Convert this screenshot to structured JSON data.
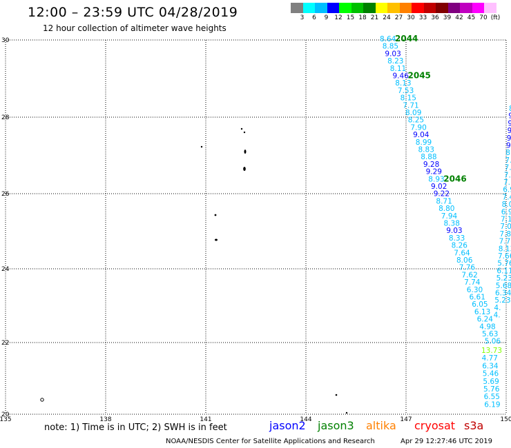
{
  "header": {
    "title": "12:00 – 23:59 UTC 04/28/2019",
    "subtitle": "12 hour collection of altimeter wave heights"
  },
  "color_scale": {
    "labels": [
      "3",
      "6",
      "9",
      "12",
      "15",
      "18",
      "21",
      "24",
      "27",
      "30",
      "33",
      "36",
      "39",
      "42",
      "45",
      "70",
      "(ft)"
    ],
    "colors": [
      "#808080",
      "#00ffff",
      "#00bfff",
      "#0000ff",
      "#00ff00",
      "#00c000",
      "#008000",
      "#ffff00",
      "#ffc000",
      "#ff8000",
      "#ff0000",
      "#c00000",
      "#800000",
      "#800080",
      "#c000c0",
      "#ff00ff",
      "#ffc0ff"
    ]
  },
  "map": {
    "lat_labels": [
      "30",
      "28",
      "26",
      "24",
      "22",
      "20"
    ],
    "lon_labels": [
      "135",
      "138",
      "141",
      "144",
      "147",
      "150"
    ],
    "passes": [
      {
        "id": "pass-left",
        "labels": [
          {
            "text": "2044",
            "row": 0,
            "color": "#008000"
          },
          {
            "text": "2045",
            "row": 5,
            "color": "#008000"
          },
          {
            "text": "2046",
            "row": 19,
            "color": "#008000"
          }
        ],
        "values": [
          {
            "v": "8.64",
            "c": "#00bfff"
          },
          {
            "v": "8.85",
            "c": "#00bfff"
          },
          {
            "v": "9.03",
            "c": "#0000ff"
          },
          {
            "v": "8.23",
            "c": "#00bfff"
          },
          {
            "v": "8.11",
            "c": "#00bfff"
          },
          {
            "v": "9.46",
            "c": "#0000ff"
          },
          {
            "v": "8.13",
            "c": "#00bfff"
          },
          {
            "v": "7.53",
            "c": "#00bfff"
          },
          {
            "v": "8.15",
            "c": "#00bfff"
          },
          {
            "v": "7.71",
            "c": "#00bfff"
          },
          {
            "v": "8.09",
            "c": "#00bfff"
          },
          {
            "v": "8.25",
            "c": "#00bfff"
          },
          {
            "v": "7.90",
            "c": "#00bfff"
          },
          {
            "v": "9.04",
            "c": "#0000ff"
          },
          {
            "v": "8.99",
            "c": "#00bfff"
          },
          {
            "v": "8.83",
            "c": "#00bfff"
          },
          {
            "v": "8.88",
            "c": "#00bfff"
          },
          {
            "v": "9.28",
            "c": "#0000ff"
          },
          {
            "v": "9.29",
            "c": "#0000ff"
          },
          {
            "v": "8.93",
            "c": "#00bfff"
          },
          {
            "v": "9.02",
            "c": "#0000ff"
          },
          {
            "v": "9.22",
            "c": "#0000ff"
          },
          {
            "v": "8.71",
            "c": "#00bfff"
          },
          {
            "v": "8.80",
            "c": "#00bfff"
          },
          {
            "v": "7.94",
            "c": "#00bfff"
          },
          {
            "v": "8.38",
            "c": "#00bfff"
          },
          {
            "v": "9.03",
            "c": "#0000ff"
          },
          {
            "v": "8.33",
            "c": "#00bfff"
          },
          {
            "v": "8.26",
            "c": "#00bfff"
          },
          {
            "v": "7.64",
            "c": "#00bfff"
          },
          {
            "v": "8.06",
            "c": "#00bfff"
          },
          {
            "v": "7.76",
            "c": "#00bfff"
          },
          {
            "v": "7.62",
            "c": "#00bfff"
          },
          {
            "v": "7.74",
            "c": "#00bfff"
          },
          {
            "v": "6.30",
            "c": "#00bfff"
          },
          {
            "v": "6.61",
            "c": "#00bfff"
          },
          {
            "v": "6.05",
            "c": "#00bfff"
          },
          {
            "v": "6.13",
            "c": "#00bfff"
          },
          {
            "v": "6.24",
            "c": "#00bfff"
          },
          {
            "v": "4.98",
            "c": "#00bfff"
          },
          {
            "v": "5.63",
            "c": "#00bfff"
          },
          {
            "v": "5.06",
            "c": "#00bfff"
          }
        ]
      },
      {
        "id": "pass-right",
        "values": [
          {
            "v": "8.",
            "c": "#00bfff"
          },
          {
            "v": "9.",
            "c": "#0000ff"
          },
          {
            "v": "9.",
            "c": "#0000ff"
          },
          {
            "v": "9.",
            "c": "#0000ff"
          },
          {
            "v": "9.",
            "c": "#0000ff"
          },
          {
            "v": "9.",
            "c": "#0000ff"
          },
          {
            "v": "8.",
            "c": "#00bfff"
          },
          {
            "v": "7.7",
            "c": "#00bfff"
          },
          {
            "v": "7.8",
            "c": "#00bfff"
          },
          {
            "v": "7.0",
            "c": "#00bfff"
          },
          {
            "v": "7.1",
            "c": "#00bfff"
          },
          {
            "v": "6.94",
            "c": "#00bfff"
          },
          {
            "v": "7.40",
            "c": "#00bfff"
          },
          {
            "v": "8.02",
            "c": "#00bfff"
          },
          {
            "v": "6.97",
            "c": "#00bfff"
          },
          {
            "v": "7.12",
            "c": "#00bfff"
          },
          {
            "v": "7.01",
            "c": "#00bfff"
          },
          {
            "v": "7.83",
            "c": "#00bfff"
          },
          {
            "v": "7.76",
            "c": "#00bfff"
          },
          {
            "v": "8.13",
            "c": "#00bfff"
          },
          {
            "v": "7.66",
            "c": "#00bfff"
          },
          {
            "v": "5.76",
            "c": "#00bfff"
          },
          {
            "v": "6.11",
            "c": "#00bfff"
          },
          {
            "v": "5.23",
            "c": "#00bfff"
          },
          {
            "v": "5.68",
            "c": "#00bfff"
          },
          {
            "v": "6.34",
            "c": "#00bfff"
          },
          {
            "v": "5.23",
            "c": "#00bfff"
          },
          {
            "v": "4.",
            "c": "#00bfff"
          },
          {
            "v": "4.",
            "c": "#00bfff"
          }
        ],
        "labels": [
          {
            "text": "20",
            "row": 19,
            "color": "#008000"
          }
        ]
      },
      {
        "id": "pass-bottom",
        "values": [
          {
            "v": "13.73",
            "c": "#80ff00"
          },
          {
            "v": "4.77",
            "c": "#00bfff"
          },
          {
            "v": "6.34",
            "c": "#00bfff"
          },
          {
            "v": "5.46",
            "c": "#00bfff"
          },
          {
            "v": "5.69",
            "c": "#00bfff"
          },
          {
            "v": "5.76",
            "c": "#00bfff"
          },
          {
            "v": "6.55",
            "c": "#00bfff"
          },
          {
            "v": "6.19",
            "c": "#00bfff"
          }
        ]
      }
    ]
  },
  "footer": {
    "note": "note: 1) Time is in UTC; 2) SWH is in feet",
    "legend": [
      {
        "text": "jason2",
        "color": "#0000ff"
      },
      {
        "text": "jason3",
        "color": "#008000"
      },
      {
        "text": "altika",
        "color": "#ff8000"
      },
      {
        "text": "cryosat",
        "color": "#ff0000"
      },
      {
        "text": "s3a",
        "color": "#c00000"
      }
    ],
    "credit": "NOAA/NESDIS Center for Satellite Applications and Research",
    "timestamp": "Apr 29 12:27:46 UTC 2019"
  }
}
